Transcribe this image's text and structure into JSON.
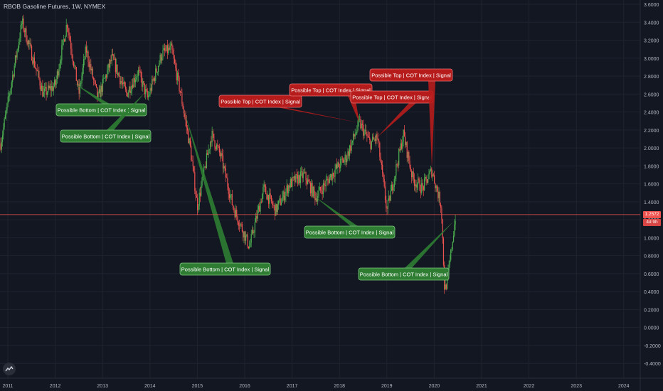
{
  "symbol_title": "RBOB Gasoline Futures, 1W, NYMEX",
  "last_price_label": "1.2572",
  "countdown_label": "4d 9h",
  "colors": {
    "background": "#131722",
    "up": "#4caf50",
    "down": "#ef5350",
    "bottom_label": "#2e7d32",
    "top_label": "#b71c1c",
    "price_line": "#ef5350"
  },
  "chart_data": {
    "type": "candlestick",
    "xlabel": "",
    "ylabel": "",
    "x_ticks": [
      "2011",
      "2012",
      "2013",
      "2014",
      "2015",
      "2016",
      "2017",
      "2018",
      "2019",
      "2020",
      "2021",
      "2022",
      "2023",
      "2024"
    ],
    "y_ticks": [
      "3.6000",
      "3.4000",
      "3.2000",
      "3.0000",
      "2.8000",
      "2.6000",
      "2.4000",
      "2.2000",
      "2.0000",
      "1.8000",
      "1.6000",
      "1.4000",
      "1.2000",
      "1.0000",
      "0.8000",
      "0.6000",
      "0.4000",
      "0.2000",
      "0.0000",
      "-0.2000",
      "-0.4000"
    ],
    "ylim": [
      -0.5,
      3.65
    ],
    "last_price": 1.2572,
    "series_path": [
      {
        "date": "2010.85",
        "value": 2.05
      },
      {
        "date": "2011.30",
        "value": 3.4
      },
      {
        "date": "2011.50",
        "value": 3.05
      },
      {
        "date": "2011.75",
        "value": 2.6
      },
      {
        "date": "2012.00",
        "value": 2.7
      },
      {
        "date": "2012.25",
        "value": 3.4
      },
      {
        "date": "2012.50",
        "value": 2.6
      },
      {
        "date": "2012.65",
        "value": 3.1
      },
      {
        "date": "2012.90",
        "value": 2.55
      },
      {
        "date": "2013.20",
        "value": 3.0
      },
      {
        "date": "2013.50",
        "value": 2.6
      },
      {
        "date": "2013.75",
        "value": 2.85
      },
      {
        "date": "2013.95",
        "value": 2.55
      },
      {
        "date": "2014.25",
        "value": 3.05
      },
      {
        "date": "2014.45",
        "value": 3.1
      },
      {
        "date": "2014.65",
        "value": 2.6
      },
      {
        "date": "2014.85",
        "value": 2.0
      },
      {
        "date": "2015.00",
        "value": 1.35
      },
      {
        "date": "2015.30",
        "value": 2.15
      },
      {
        "date": "2015.50",
        "value": 1.9
      },
      {
        "date": "2015.75",
        "value": 1.35
      },
      {
        "date": "2016.10",
        "value": 0.9
      },
      {
        "date": "2016.40",
        "value": 1.55
      },
      {
        "date": "2016.65",
        "value": 1.3
      },
      {
        "date": "2016.95",
        "value": 1.6
      },
      {
        "date": "2017.25",
        "value": 1.7
      },
      {
        "date": "2017.50",
        "value": 1.45
      },
      {
        "date": "2017.90",
        "value": 1.75
      },
      {
        "date": "2018.15",
        "value": 1.9
      },
      {
        "date": "2018.42",
        "value": 2.28
      },
      {
        "date": "2018.65",
        "value": 2.05
      },
      {
        "date": "2018.80",
        "value": 2.12
      },
      {
        "date": "2019.00",
        "value": 1.3
      },
      {
        "date": "2019.35",
        "value": 2.15
      },
      {
        "date": "2019.55",
        "value": 1.65
      },
      {
        "date": "2019.75",
        "value": 1.55
      },
      {
        "date": "2019.95",
        "value": 1.75
      },
      {
        "date": "2020.15",
        "value": 1.35
      },
      {
        "date": "2020.22",
        "value": 0.4
      },
      {
        "date": "2020.30",
        "value": 0.6
      },
      {
        "date": "2020.45",
        "value": 1.25
      }
    ],
    "annotations": [
      {
        "text": "Possible Bottom | COT Index | Signal",
        "kind": "bottom",
        "target": {
          "date": "2012.40",
          "value": 2.72
        }
      },
      {
        "text": "Possible Bottom | COT Index | Signal",
        "kind": "bottom",
        "target": {
          "date": "2013.90",
          "value": 2.62
        }
      },
      {
        "text": "Possible Bottom | COT Index | Signal",
        "kind": "bottom",
        "target": {
          "date": "2014.70",
          "value": 2.45
        }
      },
      {
        "text": "Possible Bottom | COT Index | Signal",
        "kind": "bottom",
        "target": {
          "date": "2017.45",
          "value": 1.47
        }
      },
      {
        "text": "Possible Bottom | COT Index | Signal",
        "kind": "bottom",
        "target": {
          "date": "2020.40",
          "value": 1.18
        }
      },
      {
        "text": "Possible Top | COT Index | Signal",
        "kind": "top",
        "target": {
          "date": "2018.42",
          "value": 2.28
        }
      },
      {
        "text": "Possible Top | COT Index | Signal",
        "kind": "top",
        "target": {
          "date": "2018.42",
          "value": 2.28
        }
      },
      {
        "text": "Possible Top | COT Index | Signal",
        "kind": "top",
        "target": {
          "date": "2018.80",
          "value": 2.12
        }
      },
      {
        "text": "Possible Top | COT Index | Signal",
        "kind": "top",
        "target": {
          "date": "2019.95",
          "value": 1.78
        }
      }
    ]
  }
}
